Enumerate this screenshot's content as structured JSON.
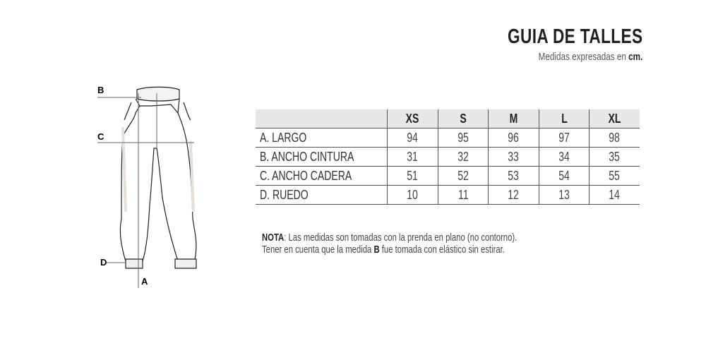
{
  "header": {
    "title": "GUIA DE TALLES",
    "subtitle_prefix": "Medidas expresadas en",
    "subtitle_unit": "cm."
  },
  "diagram": {
    "labels": {
      "a": "A",
      "b": "B",
      "c": "C",
      "d": "D"
    },
    "accent_color": "#e8e0d6"
  },
  "table": {
    "sizes": [
      "XS",
      "S",
      "M",
      "L",
      "XL"
    ],
    "rows": [
      {
        "label": "A. LARGO",
        "values": [
          94,
          95,
          96,
          97,
          98
        ]
      },
      {
        "label": "B. ANCHO CINTURA",
        "values": [
          31,
          32,
          33,
          34,
          35
        ]
      },
      {
        "label": "C. ANCHO CADERA",
        "values": [
          51,
          52,
          53,
          54,
          55
        ]
      },
      {
        "label": "D. RUEDO",
        "values": [
          10,
          11,
          12,
          13,
          14
        ]
      }
    ],
    "header_bg": "#e6e7e9"
  },
  "note": {
    "label": "NOTA",
    "line1": ": Las medidas son tomadas con la prenda en plano (no contorno).",
    "line2_prefix": "Tener en cuenta que la medida ",
    "line2_bold": "B",
    "line2_suffix": " fue tomada con elástico sin estirar."
  }
}
